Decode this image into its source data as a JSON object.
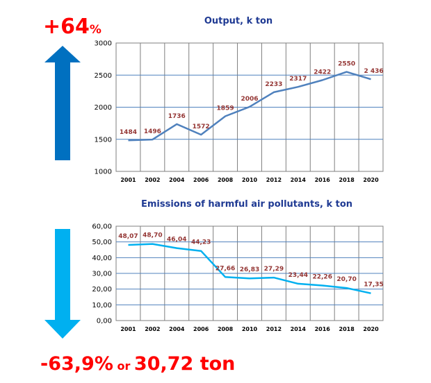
{
  "annotations": {
    "top_main": "+64",
    "top_suffix": "%",
    "bottom_part1": "-63,9%",
    "bottom_part2": " or ",
    "bottom_part3": "30,72 ton",
    "red_color": "#ff0000",
    "up_arrow_color": "#0070c0",
    "down_arrow_color": "#00b0f0"
  },
  "chart_data": [
    {
      "type": "line",
      "title": "Output, k ton",
      "categories": [
        "2001",
        "2002",
        "2004",
        "2006",
        "2008",
        "2010",
        "2012",
        "2014",
        "2016",
        "2018",
        "2020"
      ],
      "series": [
        {
          "values": [
            1484,
            1496,
            1736,
            1572,
            1859,
            2006,
            2233,
            2317,
            2422,
            2550,
            2436
          ],
          "color": "#4f81bd"
        }
      ],
      "data_labels": [
        "1484",
        "1496",
        "1736",
        "1572",
        "1859",
        "2006",
        "2233",
        "2317",
        "2422",
        "2550",
        "2 436"
      ],
      "ylim": [
        1000,
        3000
      ],
      "yticks": [
        "1000",
        "1500",
        "2000",
        "2500",
        "3000"
      ],
      "grid": true,
      "label_color": "#943634"
    },
    {
      "type": "line",
      "title": "Emissions of harmful air pollutants, k ton",
      "categories": [
        "2001",
        "2002",
        "2004",
        "2006",
        "2008",
        "2010",
        "2012",
        "2014",
        "2016",
        "2018",
        "2020"
      ],
      "series": [
        {
          "values": [
            48.07,
            48.7,
            46.04,
            44.23,
            27.66,
            26.83,
            27.29,
            23.44,
            22.26,
            20.7,
            17.35
          ],
          "color": "#00b0f0"
        }
      ],
      "data_labels": [
        "48,07",
        "48,70",
        "46,04",
        "44,23",
        "27,66",
        "26,83",
        "27,29",
        "23,44",
        "22,26",
        "20,70",
        "17,35"
      ],
      "ylim": [
        0,
        60
      ],
      "yticks": [
        "0,00",
        "10,00",
        "20,00",
        "30,00",
        "40,00",
        "50,00",
        "60,00"
      ],
      "grid": true,
      "label_color": "#943634"
    }
  ]
}
